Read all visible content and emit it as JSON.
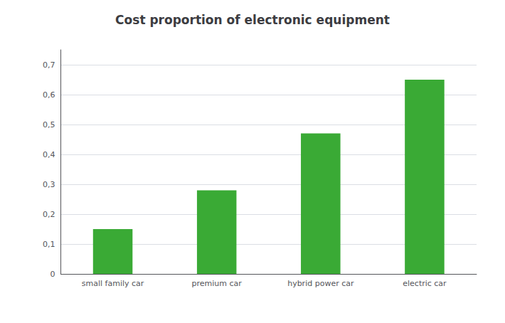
{
  "chart_data": {
    "type": "bar",
    "title": "Cost proportion of electronic equipment",
    "categories": [
      "small family car",
      "premium car",
      "hybrid power car",
      "electric car"
    ],
    "values": [
      0.15,
      0.28,
      0.47,
      0.65
    ],
    "color": "#3aaa35",
    "ylim": [
      0,
      0.75
    ],
    "yticks": [
      0,
      {
        "value": 0.1,
        "label": "0,1"
      },
      {
        "value": 0.2,
        "label": "0,2"
      },
      {
        "value": 0.3,
        "label": "0,3"
      },
      {
        "value": 0.4,
        "label": "0,4"
      },
      {
        "value": 0.5,
        "label": "0,5"
      },
      {
        "value": 0.6,
        "label": "0,6"
      },
      {
        "value": 0.7,
        "label": "0,7"
      }
    ],
    "grid": true
  }
}
